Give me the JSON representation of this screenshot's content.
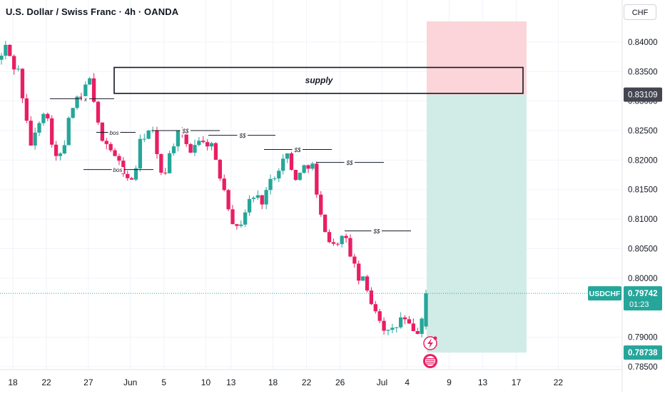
{
  "header": {
    "title": "U.S. Dollar / Swiss Franc · 4h · OANDA",
    "currency": "CHF"
  },
  "colors": {
    "up": "#26a69a",
    "down": "#e91e63",
    "stop_zone": "#fbd5d9",
    "target_zone": "#d1ece6",
    "price_badge": "#26a69a",
    "grid": "#f0f3fa",
    "axis_text": "#131722",
    "dark_badge": "#434651"
  },
  "chart_data": {
    "type": "candlestick",
    "symbol": "USDCHF",
    "timeframe": "4h",
    "ylim": [
      0.7845,
      0.8435
    ],
    "y_ticks": [
      0.84,
      0.835,
      0.83,
      0.825,
      0.82,
      0.815,
      0.81,
      0.805,
      0.8,
      0.79,
      0.785
    ],
    "y_tick_labels": [
      "0.84000",
      "0.83500",
      "0.83000",
      "0.82500",
      "0.82000",
      "0.81500",
      "0.81000",
      "0.80500",
      "0.80000",
      "0.79000",
      "0.78500"
    ],
    "x_ticks": [
      {
        "label": "18",
        "day": 0
      },
      {
        "label": "22",
        "day": 4
      },
      {
        "label": "27",
        "day": 9
      },
      {
        "label": "Jun",
        "day": 14
      },
      {
        "label": "5",
        "day": 18
      },
      {
        "label": "10",
        "day": 23
      },
      {
        "label": "13",
        "day": 26
      },
      {
        "label": "18",
        "day": 31
      },
      {
        "label": "22",
        "day": 35
      },
      {
        "label": "26",
        "day": 39
      },
      {
        "label": "Jul",
        "day": 44
      },
      {
        "label": "4",
        "day": 47
      },
      {
        "label": "9",
        "day": 52
      },
      {
        "label": "13",
        "day": 56
      },
      {
        "label": "17",
        "day": 60
      },
      {
        "label": "22",
        "day": 65
      }
    ],
    "path": [
      [
        0,
        0.837
      ],
      [
        1,
        0.8395
      ],
      [
        2,
        0.836
      ],
      [
        3,
        0.835
      ],
      [
        4,
        0.827
      ],
      [
        5,
        0.822
      ],
      [
        6,
        0.8265
      ],
      [
        7,
        0.829
      ],
      [
        8,
        0.824
      ],
      [
        9,
        0.8195
      ],
      [
        10,
        0.822
      ],
      [
        11,
        0.828
      ],
      [
        12,
        0.83
      ],
      [
        13,
        0.8305
      ],
      [
        14,
        0.835
      ],
      [
        15,
        0.827
      ],
      [
        16,
        0.824
      ],
      [
        17,
        0.8225
      ],
      [
        18,
        0.8205
      ],
      [
        19,
        0.819
      ],
      [
        20,
        0.8165
      ],
      [
        21,
        0.817
      ],
      [
        22,
        0.823
      ],
      [
        23,
        0.825
      ],
      [
        24,
        0.8245
      ],
      [
        25,
        0.818
      ],
      [
        26,
        0.8185
      ],
      [
        27,
        0.8225
      ],
      [
        28,
        0.8245
      ],
      [
        29,
        0.823
      ],
      [
        30,
        0.8215
      ],
      [
        31,
        0.824
      ],
      [
        32,
        0.8225
      ],
      [
        33,
        0.8235
      ],
      [
        34,
        0.8185
      ],
      [
        35,
        0.816
      ],
      [
        36,
        0.8115
      ],
      [
        37,
        0.808
      ],
      [
        38,
        0.81
      ],
      [
        39,
        0.813
      ],
      [
        40,
        0.814
      ],
      [
        41,
        0.813
      ],
      [
        42,
        0.8155
      ],
      [
        43,
        0.8175
      ],
      [
        44,
        0.8195
      ],
      [
        45,
        0.821
      ],
      [
        46,
        0.817
      ],
      [
        47,
        0.8175
      ],
      [
        48,
        0.8195
      ],
      [
        49,
        0.819
      ],
      [
        50,
        0.811
      ],
      [
        51,
        0.8085
      ],
      [
        52,
        0.805
      ],
      [
        53,
        0.8065
      ],
      [
        54,
        0.807
      ],
      [
        55,
        0.804
      ],
      [
        56,
        0.8
      ],
      [
        57,
        0.7995
      ],
      [
        58,
        0.7965
      ],
      [
        59,
        0.7945
      ],
      [
        60,
        0.792
      ],
      [
        61,
        0.7905
      ],
      [
        62,
        0.7915
      ],
      [
        63,
        0.7935
      ],
      [
        64,
        0.792
      ],
      [
        65,
        0.7905
      ],
      [
        66,
        0.7918
      ],
      [
        67,
        0.7974
      ]
    ],
    "current_price": {
      "label": "0.79742",
      "value": 0.79742,
      "symbol": "USDCHF",
      "countdown": "01:23"
    },
    "price_labels": [
      {
        "label": "0.83109",
        "value": 0.83109,
        "style": "dark"
      },
      {
        "label": "0.78738",
        "value": 0.78738,
        "style": "green"
      }
    ],
    "position": {
      "type": "short",
      "entry": 0.83109,
      "stop": 0.8435,
      "target": 0.78738
    },
    "supply_zone": {
      "label": "supply",
      "top": 0.8357,
      "bottom": 0.8313
    },
    "annotations": [
      {
        "label": "x",
        "level": 0.8304
      },
      {
        "label": "bos",
        "level": 0.8247
      },
      {
        "label": "bos",
        "level": 0.8184
      },
      {
        "label": "$$",
        "level": 0.825
      },
      {
        "label": "$$",
        "level": 0.8242
      },
      {
        "label": "$$",
        "level": 0.8218
      },
      {
        "label": "$$",
        "level": 0.8196
      },
      {
        "label": "$$",
        "level": 0.808
      }
    ]
  }
}
